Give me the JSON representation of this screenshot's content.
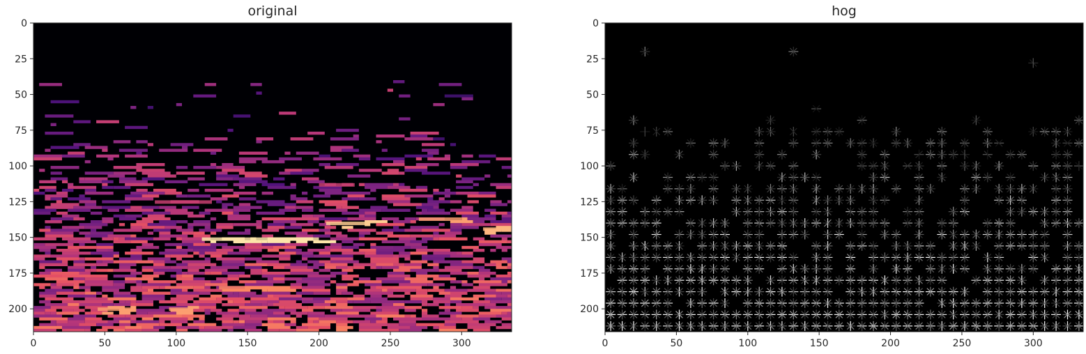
{
  "chart_data": [
    {
      "type": "heatmap",
      "title": "original",
      "xlabel": "",
      "ylabel": "",
      "colormap": "magma",
      "xlim": [
        0,
        335
      ],
      "ylim": [
        216,
        0
      ],
      "xticks": [
        0,
        50,
        100,
        150,
        200,
        250,
        300
      ],
      "yticks": [
        0,
        25,
        50,
        75,
        100,
        125,
        150,
        175,
        200
      ],
      "colors": {
        "background": "#000004",
        "mid": "#b63679",
        "high": "#fcfdbf"
      },
      "highlights": [
        {
          "x": [
            118,
            200
          ],
          "y": 151,
          "intensity": 0.95
        },
        {
          "x": [
            205,
            235
          ],
          "y": 140,
          "intensity": 0.9
        },
        {
          "x": [
            270,
            300
          ],
          "y": 137,
          "intensity": 0.8
        },
        {
          "x": [
            315,
            335
          ],
          "y": 144,
          "intensity": 0.85
        },
        {
          "x": [
            130,
            165
          ],
          "y": 185,
          "intensity": 0.75
        },
        {
          "x": [
            45,
            70
          ],
          "y": 200,
          "intensity": 0.8
        },
        {
          "x": [
            95,
            110
          ],
          "y": 200,
          "intensity": 0.8
        },
        {
          "x": [
            200,
            225
          ],
          "y": 113,
          "intensity": 0.55
        },
        {
          "x": [
            85,
            125
          ],
          "y": 125,
          "intensity": 0.55
        }
      ],
      "grid": false
    },
    {
      "type": "heatmap",
      "title": "hog",
      "xlabel": "",
      "ylabel": "",
      "colormap": "gray",
      "xlim": [
        0,
        335
      ],
      "ylim": [
        216,
        0
      ],
      "xticks": [
        0,
        50,
        100,
        150,
        200,
        250,
        300
      ],
      "yticks": [
        0,
        25,
        50,
        75,
        100,
        125,
        150,
        175,
        200
      ],
      "cell_size": 8,
      "colors": {
        "background": "#000000",
        "glyph": "#ffffff"
      },
      "grid": false
    }
  ]
}
